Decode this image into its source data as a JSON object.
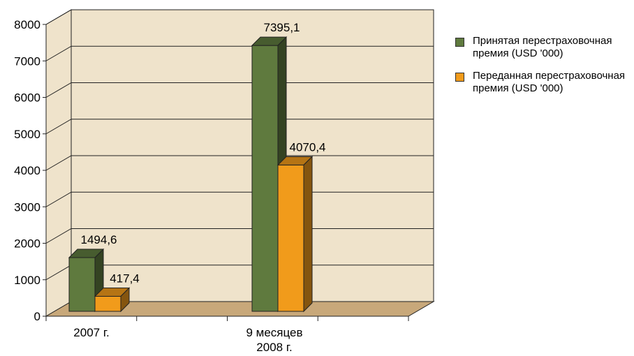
{
  "chart_data": {
    "type": "bar",
    "categories": [
      "2007 г.",
      "9 месяцев 2008 г."
    ],
    "category_lines": [
      [
        "2007 г."
      ],
      [
        "9 месяцев",
        "2008 г."
      ]
    ],
    "series": [
      {
        "name": "Принятая перестраховочная премия (USD '000)",
        "values": [
          1494.6,
          7395.1
        ],
        "labels": [
          "1494,6",
          "7395,1"
        ],
        "color": "#5f7a3e"
      },
      {
        "name": "Переданная перестраховочная премия (USD '000)",
        "values": [
          417.4,
          4070.4
        ],
        "labels": [
          "417,4",
          "4070,4"
        ],
        "color": "#f19b1b"
      }
    ],
    "ylim": [
      0,
      8000
    ],
    "yticks": [
      0,
      1000,
      2000,
      3000,
      4000,
      5000,
      6000,
      7000,
      8000
    ],
    "grid": true,
    "legend_position": "right",
    "wall_color": "#efe3cb",
    "floor_color": "#c8a87a"
  },
  "legend": {
    "items": [
      {
        "label": "Принятая перестраховочная премия (USD '000)",
        "color": "#5f7a3e"
      },
      {
        "label": "Переданная перестраховочная премия (USD '000)",
        "color": "#f19b1b"
      }
    ]
  }
}
